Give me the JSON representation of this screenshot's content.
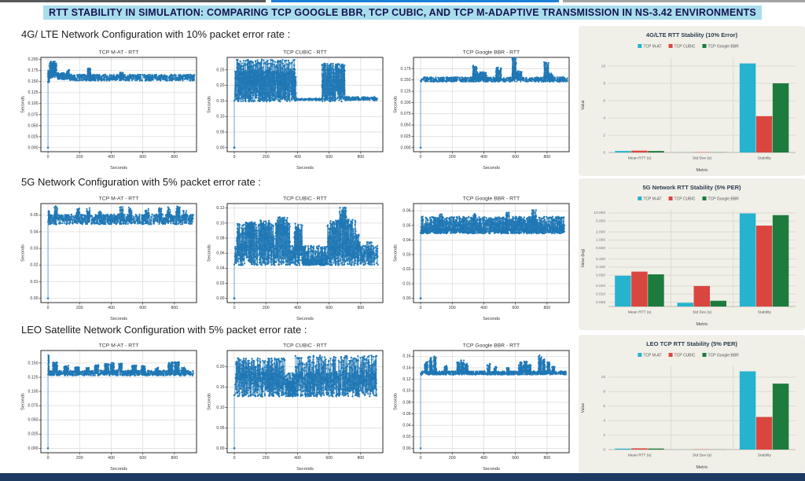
{
  "page": {
    "title": "RTT STABILITY IN SIMULATION: COMPARING TCP GOOGLE BBR, TCP CUBIC, AND TCP M-ADAPTIVE TRANSMISSION IN NS-3.42 ENVIRONMENTS",
    "title_highlight": "#a9ddec",
    "title_color": "#141450",
    "top_strip_colors": [
      "#58595b",
      "#1d7fd6",
      "#a3a3a3"
    ],
    "bottom_bar_color": "#1e3a63"
  },
  "sections": [
    {
      "label": "4G/ LTE Network Configuration with 10% packet error rate :"
    },
    {
      "label": "5G Network Configuration with 5% packet error rate :"
    },
    {
      "label": "LEO Satellite Network Configuration with 5% packet error rate :"
    }
  ],
  "colors": {
    "scatter_marker": "#1f77b4",
    "tcp_mat": "#26b3cd",
    "tcp_cubic": "#d9463f",
    "tcp_bbr": "#1e7b3e",
    "panel_bg": "#f0efe8"
  },
  "chart_data": [
    {
      "type": "scatter",
      "title": "TCP M-AT - RTT",
      "xlabel": "Seconds",
      "ylabel": "Seconds",
      "xticks": [
        0,
        200,
        400,
        600,
        800
      ],
      "xmax": 940,
      "ymax": 0.205,
      "start": 0.15,
      "seed": 42,
      "r": 1.1,
      "ytick_vals": [
        0,
        0.025,
        0.05,
        0.075,
        0.1,
        0.125,
        0.15,
        0.175,
        0.2
      ],
      "ytick_labels": [
        "0.000",
        "0.025",
        "0.050",
        "0.075",
        "0.100",
        "0.125",
        "0.150",
        "0.175",
        "0.200"
      ],
      "clusters": [
        [
          0,
          8,
          0.148,
          0.175,
          50
        ],
        [
          8,
          55,
          0.158,
          0.196,
          130
        ],
        [
          55,
          120,
          0.155,
          0.17,
          100
        ],
        [
          120,
          135,
          0.157,
          0.178,
          40
        ],
        [
          135,
          930,
          0.152,
          0.166,
          700
        ],
        [
          250,
          270,
          0.158,
          0.18,
          50
        ],
        [
          455,
          475,
          0.156,
          0.172,
          40
        ]
      ]
    },
    {
      "type": "scatter",
      "title": "TCP CUBIC - RTT",
      "xlabel": "Seconds",
      "ylabel": "Seconds",
      "xticks": [
        0,
        200,
        400,
        600,
        800
      ],
      "xmax": 940,
      "ymax": 0.29,
      "start": 0.15,
      "seed": 43,
      "r": 1.2,
      "ytick_vals": [
        0,
        0.05,
        0.1,
        0.15,
        0.2,
        0.25
      ],
      "ytick_labels": [
        "0.00",
        "0.05",
        "0.10",
        "0.15",
        "0.20",
        "0.25"
      ],
      "clusters": [
        [
          5,
          390,
          0.148,
          0.245,
          900
        ],
        [
          15,
          385,
          0.2,
          0.283,
          400
        ],
        [
          390,
          555,
          0.152,
          0.158,
          70
        ],
        [
          555,
          700,
          0.148,
          0.27,
          450
        ],
        [
          700,
          905,
          0.152,
          0.163,
          130
        ]
      ]
    },
    {
      "type": "scatter",
      "title": "TCP Google BBR - RTT",
      "xlabel": "Seconds",
      "ylabel": "Seconds",
      "xticks": [
        0,
        200,
        400,
        600,
        800
      ],
      "xmax": 940,
      "ymax": 0.2,
      "start": 0.148,
      "seed": 44,
      "r": 1.1,
      "ytick_vals": [
        0,
        0.025,
        0.05,
        0.075,
        0.1,
        0.125,
        0.15,
        0.175
      ],
      "ytick_labels": [
        "0.000",
        "0.025",
        "0.050",
        "0.075",
        "0.100",
        "0.125",
        "0.150",
        "0.175"
      ],
      "clusters": [
        [
          3,
          930,
          0.146,
          0.156,
          700
        ],
        [
          330,
          355,
          0.15,
          0.182,
          60
        ],
        [
          355,
          420,
          0.15,
          0.168,
          80
        ],
        [
          475,
          510,
          0.148,
          0.178,
          70
        ],
        [
          580,
          605,
          0.15,
          0.2,
          70
        ],
        [
          605,
          640,
          0.15,
          0.17,
          50
        ],
        [
          780,
          810,
          0.15,
          0.19,
          80
        ],
        [
          810,
          840,
          0.148,
          0.165,
          40
        ]
      ]
    },
    {
      "type": "scatter",
      "title": "TCP M-AT - RTT",
      "xlabel": "Seconds",
      "ylabel": "Seconds",
      "xticks": [
        0,
        200,
        400,
        600,
        800
      ],
      "xmax": 940,
      "ymax": 0.057,
      "start": 0.046,
      "seed": 45,
      "r": 1.1,
      "ytick_vals": [
        0,
        0.01,
        0.02,
        0.03,
        0.04,
        0.05
      ],
      "ytick_labels": [
        "0.00",
        "0.01",
        "0.02",
        "0.03",
        "0.04",
        "0.05"
      ],
      "clusters": [
        [
          2,
          920,
          0.0445,
          0.0505,
          850
        ],
        [
          2,
          10,
          0.048,
          0.053,
          20
        ],
        [
          40,
          60,
          0.048,
          0.0555,
          30
        ],
        [
          180,
          200,
          0.048,
          0.054,
          25
        ],
        [
          245,
          265,
          0.048,
          0.0545,
          25
        ],
        [
          320,
          340,
          0.048,
          0.053,
          20
        ],
        [
          455,
          475,
          0.048,
          0.055,
          25
        ],
        [
          510,
          530,
          0.048,
          0.055,
          25
        ],
        [
          615,
          640,
          0.048,
          0.054,
          25
        ],
        [
          700,
          720,
          0.048,
          0.0545,
          20
        ],
        [
          755,
          775,
          0.049,
          0.0555,
          25
        ],
        [
          810,
          835,
          0.049,
          0.0555,
          30
        ],
        [
          855,
          875,
          0.048,
          0.053,
          20
        ]
      ]
    },
    {
      "type": "scatter",
      "title": "TCP CUBIC - RTT",
      "xlabel": "Seconds",
      "ylabel": "Seconds",
      "xticks": [
        0,
        200,
        400,
        600,
        800
      ],
      "xmax": 940,
      "ymax": 0.126,
      "start": 0.045,
      "seed": 46,
      "r": 1.2,
      "ytick_vals": [
        0,
        0.02,
        0.04,
        0.06,
        0.08,
        0.1,
        0.12
      ],
      "ytick_labels": [
        "0.00",
        "0.02",
        "0.04",
        "0.06",
        "0.08",
        "0.10",
        "0.12"
      ],
      "clusters": [
        [
          3,
          910,
          0.044,
          0.07,
          1000
        ],
        [
          15,
          360,
          0.065,
          0.1,
          350
        ],
        [
          70,
          130,
          0.08,
          0.102,
          80
        ],
        [
          160,
          220,
          0.08,
          0.104,
          80
        ],
        [
          270,
          340,
          0.085,
          0.108,
          100
        ],
        [
          380,
          430,
          0.065,
          0.1,
          100
        ],
        [
          430,
          590,
          0.044,
          0.052,
          150
        ],
        [
          590,
          770,
          0.065,
          0.105,
          250
        ],
        [
          665,
          710,
          0.095,
          0.121,
          70
        ],
        [
          770,
          800,
          0.06,
          0.085,
          40
        ],
        [
          840,
          870,
          0.05,
          0.075,
          40
        ]
      ]
    },
    {
      "type": "scatter",
      "title": "TCP Google BBR - RTT",
      "xlabel": "Seconds",
      "ylabel": "Seconds",
      "xticks": [
        0,
        200,
        400,
        600,
        800
      ],
      "xmax": 940,
      "ymax": 0.065,
      "start": 0.045,
      "seed": 47,
      "r": 1.2,
      "ytick_vals": [
        0,
        0.01,
        0.02,
        0.03,
        0.04,
        0.05,
        0.06
      ],
      "ytick_labels": [
        "0.00",
        "0.01",
        "0.02",
        "0.03",
        "0.04",
        "0.05",
        "0.06"
      ],
      "clusters": [
        [
          3,
          910,
          0.0445,
          0.056,
          1200
        ],
        [
          3,
          910,
          0.0445,
          0.048,
          400
        ],
        [
          120,
          140,
          0.05,
          0.058,
          30
        ],
        [
          330,
          350,
          0.05,
          0.058,
          30
        ],
        [
          540,
          560,
          0.05,
          0.059,
          30
        ],
        [
          700,
          730,
          0.05,
          0.0605,
          40
        ]
      ]
    },
    {
      "type": "scatter",
      "title": "TCP M-AT - RTT",
      "xlabel": "Seconds",
      "ylabel": "Seconds",
      "xticks": [
        0,
        200,
        400,
        600,
        800
      ],
      "xmax": 940,
      "ymax": 0.172,
      "start": 0.13,
      "seed": 48,
      "r": 1.1,
      "ytick_vals": [
        0,
        0.025,
        0.05,
        0.075,
        0.1,
        0.125,
        0.15
      ],
      "ytick_labels": [
        "0.000",
        "0.025",
        "0.050",
        "0.075",
        "0.100",
        "0.125",
        "0.150"
      ],
      "clusters": [
        [
          2,
          6,
          0.132,
          0.167,
          35
        ],
        [
          6,
          920,
          0.128,
          0.137,
          750
        ],
        [
          30,
          60,
          0.135,
          0.152,
          60
        ],
        [
          100,
          130,
          0.133,
          0.146,
          40
        ],
        [
          170,
          200,
          0.134,
          0.143,
          35
        ],
        [
          240,
          265,
          0.134,
          0.142,
          30
        ],
        [
          295,
          320,
          0.135,
          0.147,
          40
        ],
        [
          355,
          385,
          0.134,
          0.149,
          45
        ],
        [
          395,
          420,
          0.136,
          0.152,
          45
        ],
        [
          445,
          470,
          0.135,
          0.15,
          40
        ],
        [
          530,
          560,
          0.134,
          0.147,
          40
        ],
        [
          590,
          615,
          0.134,
          0.146,
          35
        ],
        [
          680,
          700,
          0.132,
          0.142,
          25
        ],
        [
          760,
          790,
          0.135,
          0.152,
          50
        ],
        [
          800,
          830,
          0.134,
          0.152,
          50
        ],
        [
          845,
          870,
          0.132,
          0.143,
          30
        ]
      ]
    },
    {
      "type": "scatter",
      "title": "TCP CUBIC - RTT",
      "xlabel": "Seconds",
      "ylabel": "Seconds",
      "xticks": [
        0,
        200,
        400,
        600,
        800
      ],
      "xmax": 940,
      "ymax": 0.24,
      "start": 0.13,
      "seed": 49,
      "r": 1.2,
      "ytick_vals": [
        0,
        0.05,
        0.1,
        0.15,
        0.2
      ],
      "ytick_labels": [
        "0.00",
        "0.05",
        "0.10",
        "0.15",
        "0.20"
      ],
      "clusters": [
        [
          3,
          900,
          0.127,
          0.185,
          1100
        ],
        [
          10,
          320,
          0.17,
          0.222,
          280
        ],
        [
          330,
          385,
          0.127,
          0.165,
          90
        ],
        [
          385,
          900,
          0.17,
          0.228,
          350
        ]
      ]
    },
    {
      "type": "scatter",
      "title": "TCP Google BBR - RTT",
      "xlabel": "Seconds",
      "ylabel": "Seconds",
      "xticks": [
        0,
        200,
        400,
        600,
        800
      ],
      "xmax": 940,
      "ymax": 0.17,
      "start": 0.13,
      "seed": 50,
      "r": 1.1,
      "ytick_vals": [
        0,
        0.02,
        0.04,
        0.06,
        0.08,
        0.1,
        0.12,
        0.14,
        0.16
      ],
      "ytick_labels": [
        "0.00",
        "0.02",
        "0.04",
        "0.06",
        "0.08",
        "0.10",
        "0.12",
        "0.14",
        "0.16"
      ],
      "clusters": [
        [
          3,
          920,
          0.128,
          0.134,
          800
        ],
        [
          25,
          45,
          0.13,
          0.152,
          40
        ],
        [
          55,
          75,
          0.13,
          0.158,
          50
        ],
        [
          80,
          100,
          0.13,
          0.161,
          40
        ],
        [
          150,
          170,
          0.13,
          0.144,
          30
        ],
        [
          230,
          250,
          0.13,
          0.15,
          35
        ],
        [
          255,
          275,
          0.13,
          0.153,
          35
        ],
        [
          280,
          300,
          0.13,
          0.148,
          30
        ],
        [
          420,
          440,
          0.13,
          0.147,
          30
        ],
        [
          465,
          480,
          0.131,
          0.142,
          20
        ],
        [
          545,
          560,
          0.13,
          0.14,
          20
        ],
        [
          620,
          645,
          0.13,
          0.15,
          40
        ],
        [
          650,
          675,
          0.131,
          0.152,
          40
        ],
        [
          680,
          700,
          0.13,
          0.146,
          25
        ],
        [
          745,
          765,
          0.132,
          0.162,
          45
        ],
        [
          770,
          790,
          0.13,
          0.155,
          40
        ],
        [
          800,
          820,
          0.131,
          0.15,
          35
        ],
        [
          830,
          850,
          0.13,
          0.143,
          25
        ]
      ]
    },
    {
      "type": "bar",
      "title": "4G/LTE RTT Stability (10% Error)",
      "categories": [
        "Mean RTT (s)",
        "Std Dev (s)",
        "Stability"
      ],
      "series": [
        {
          "name": "TCP M-AT",
          "color": "#26b3cd",
          "values": [
            0.17,
            0.02,
            10.3
          ]
        },
        {
          "name": "TCP CUBIC",
          "color": "#d9463f",
          "values": [
            0.21,
            0.035,
            4.2
          ]
        },
        {
          "name": "TCP Google BBR",
          "color": "#1e7b3e",
          "values": [
            0.17,
            0.02,
            8.0
          ]
        }
      ],
      "scale": "linear",
      "ymax": 11,
      "ytick_vals": [
        0,
        2,
        4,
        6,
        8,
        10
      ],
      "ytick_labels": [
        "0",
        "2",
        "4",
        "6",
        "8",
        "10"
      ],
      "ylabel": "Value",
      "xlabel": "Metric"
    },
    {
      "type": "bar",
      "title": "5G Network RTT Stability (5% PER)",
      "categories": [
        "Mean RTT (s)",
        "Std Dev (s)",
        "Stability"
      ],
      "series": [
        {
          "name": "TCP M-AT",
          "color": "#26b3cd",
          "values": [
            0.048,
            0.0048,
            9.6
          ]
        },
        {
          "name": "TCP CUBIC",
          "color": "#d9463f",
          "values": [
            0.068,
            0.02,
            3.4
          ]
        },
        {
          "name": "TCP Google BBR",
          "color": "#1e7b3e",
          "values": [
            0.054,
            0.0057,
            8.3
          ]
        }
      ],
      "scale": "log",
      "ymin": 0.0035,
      "ymax": 13,
      "ytick_vals": [
        10,
        5,
        2,
        1,
        0.5,
        0.2,
        0.1,
        0.05,
        0.02,
        0.01,
        0.005
      ],
      "ytick_labels": [
        "10.000",
        "5.000",
        "2.000",
        "1.000",
        "0.500",
        "0.200",
        "0.100",
        "0.050",
        "0.020",
        "0.010",
        "0.005"
      ],
      "ylabel": "Value (log)",
      "xlabel": "Metric"
    },
    {
      "type": "bar",
      "title": "LEO TCP RTT Stability (5% PER)",
      "categories": [
        "Mean RTT (s)",
        "Std Dev (s)",
        "Stability"
      ],
      "series": [
        {
          "name": "TCP M-AT",
          "color": "#26b3cd",
          "values": [
            0.13,
            0.012,
            10.8
          ]
        },
        {
          "name": "TCP CUBIC",
          "color": "#d9463f",
          "values": [
            0.17,
            0.03,
            4.5
          ]
        },
        {
          "name": "TCP Google BBR",
          "color": "#1e7b3e",
          "values": [
            0.14,
            0.015,
            9.1
          ]
        }
      ],
      "scale": "linear",
      "ymax": 11.5,
      "ytick_vals": [
        0,
        2,
        4,
        6,
        8,
        10
      ],
      "ytick_labels": [
        "0",
        "2",
        "4",
        "6",
        "8",
        "10"
      ],
      "ylabel": "Value",
      "xlabel": "Metric"
    }
  ]
}
